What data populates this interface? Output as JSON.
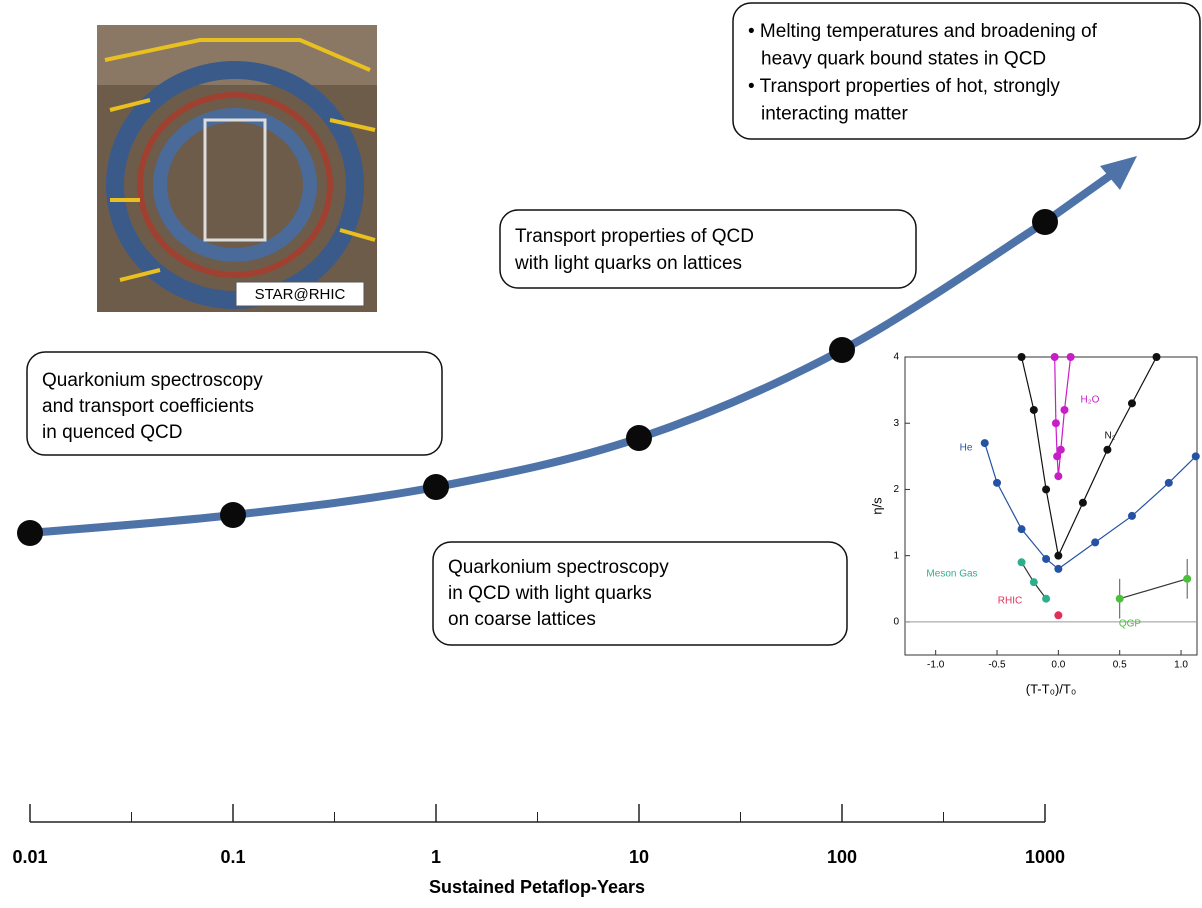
{
  "photo": {
    "label": "STAR@RHIC"
  },
  "boxes": [
    {
      "lines": [
        "• Melting temperatures and broadening of",
        "heavy quark bound states in QCD",
        "• Transport properties of hot, strongly",
        "interacting matter"
      ]
    },
    {
      "lines": [
        "Transport properties of QCD",
        "with light quarks on lattices"
      ]
    },
    {
      "lines": [
        "Quarkonium spectroscopy",
        "and transport coefficients",
        "in quenced QCD"
      ]
    },
    {
      "lines": [
        "Quarkonium spectroscopy",
        "in QCD with light quarks",
        "on coarse lattices"
      ]
    }
  ],
  "axis": {
    "label": "Sustained Petaflop-Years",
    "ticks": [
      0.01,
      0.1,
      1,
      10,
      100,
      1000
    ]
  },
  "inset": {
    "ylabel": "η/s",
    "xlabel": "(T-T₀)/T₀",
    "xlim": [
      -1.25,
      1.13
    ],
    "ylim": [
      -0.5,
      4
    ],
    "xticks": [
      {
        "value": -1,
        "label": "-1.0"
      },
      -0.5,
      {
        "value": 0,
        "label": "0.0"
      },
      0.5,
      {
        "value": 1,
        "label": "1.0"
      }
    ],
    "yticks": [
      0,
      1,
      2,
      3,
      4
    ],
    "series": [
      {
        "name": "H₂O",
        "color": "#c81ec8",
        "x": [
          -0.03,
          -0.02,
          -0.01,
          0,
          0.02,
          0.05,
          0.1
        ],
        "values": [
          4,
          3.0,
          2.5,
          2.2,
          2.6,
          3.2,
          4
        ]
      },
      {
        "name": "N₂",
        "color": "#111111",
        "x": [
          -0.3,
          -0.2,
          -0.1,
          0,
          0.2,
          0.4,
          0.6,
          0.8
        ],
        "values": [
          4,
          3.2,
          2.0,
          1.0,
          1.8,
          2.6,
          3.3,
          4
        ]
      },
      {
        "name": "He",
        "color": "#2452a4",
        "x": [
          -0.6,
          -0.5,
          -0.3,
          -0.1,
          0,
          0.3,
          0.6,
          0.9,
          1.12
        ],
        "values": [
          2.7,
          2.1,
          1.4,
          0.95,
          0.8,
          1.2,
          1.6,
          2.1,
          2.5
        ]
      },
      {
        "name": "Meson Gas",
        "color": "#2fae8e",
        "x": [
          -0.3,
          -0.2,
          -0.1
        ],
        "values": [
          0.9,
          0.6,
          0.35
        ]
      },
      {
        "name": "RHIC",
        "color": "#e0305a",
        "x": [
          0
        ],
        "values": [
          0.1
        ]
      },
      {
        "name": "QGP",
        "color": "#4cc03c",
        "x": [
          0.5,
          1.05
        ],
        "values": [
          0.35,
          0.65
        ],
        "errors": [
          0.3,
          0.3
        ]
      }
    ]
  }
}
